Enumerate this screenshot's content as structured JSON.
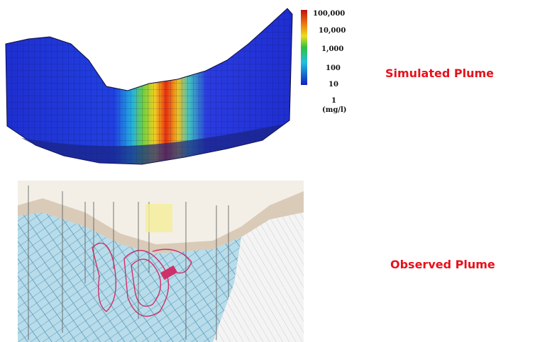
{
  "simulated": {
    "label": "Simulated Plume",
    "legend": {
      "ticks": [
        "100,000",
        "10,000",
        "1,000",
        "100",
        "10",
        "1"
      ],
      "unit": "(mg/l)"
    }
  },
  "observed": {
    "label": "Observed Plume"
  }
}
